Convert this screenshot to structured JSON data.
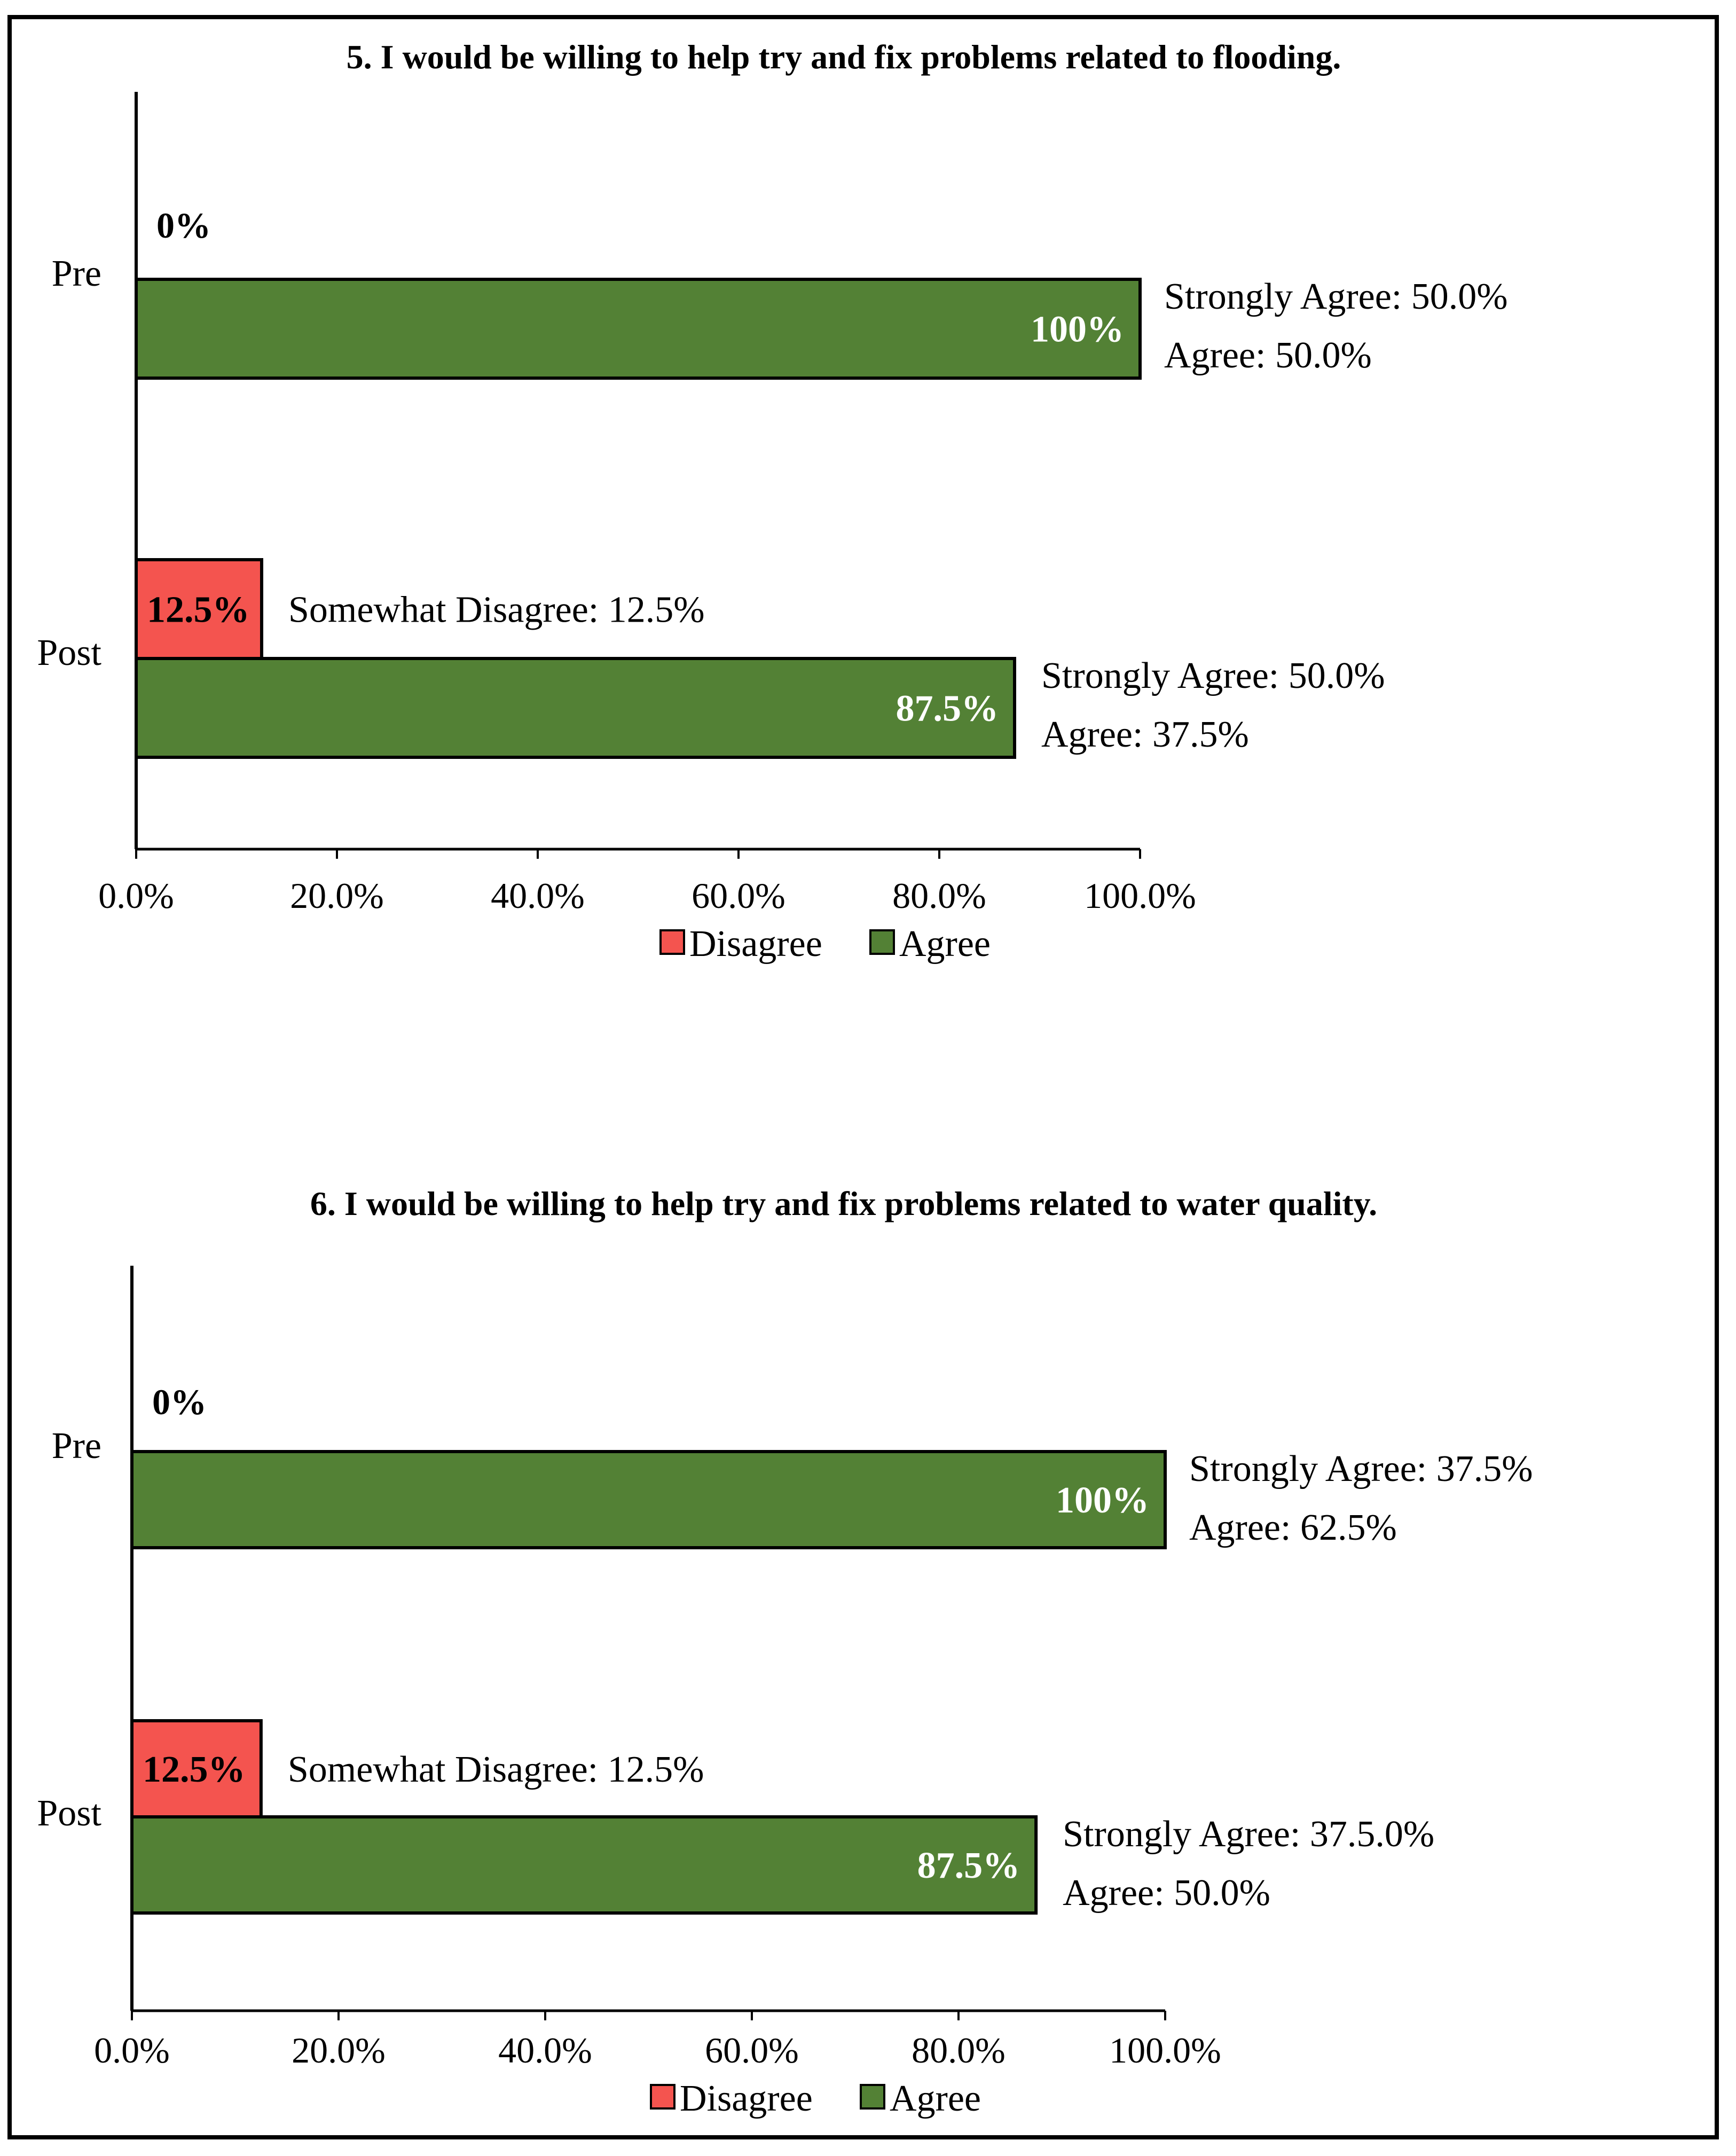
{
  "chart_data": [
    {
      "type": "bar",
      "orientation": "horizontal",
      "title": "5. I would be willing to help try and fix problems related to flooding.",
      "categories": [
        "Pre",
        "Post"
      ],
      "series": [
        {
          "name": "Disagree",
          "values": [
            0,
            12.5
          ],
          "labels": [
            "0%",
            "12.5%"
          ],
          "color": "#f4544f"
        },
        {
          "name": "Agree",
          "values": [
            100,
            87.5
          ],
          "labels": [
            "100%",
            "87.5%"
          ],
          "color": "#538135"
        }
      ],
      "annotations": {
        "pre_agree": [
          "Strongly Agree:  50.0%",
          "Agree:  50.0%"
        ],
        "post_disagree": [
          "Somewhat Disagree:  12.5%"
        ],
        "post_agree": [
          "Strongly Agree:  50.0%",
          "Agree:  37.5%"
        ]
      },
      "xlim": [
        0,
        100
      ],
      "xticks": [
        "0.0%",
        "20.0%",
        "40.0%",
        "60.0%",
        "80.0%",
        "100.0%"
      ],
      "legend": [
        "Disagree",
        "Agree"
      ],
      "legend_position": "bottom"
    },
    {
      "type": "bar",
      "orientation": "horizontal",
      "title": "6. I would be willing to help try and fix problems related to water quality.",
      "categories": [
        "Pre",
        "Post"
      ],
      "series": [
        {
          "name": "Disagree",
          "values": [
            0,
            12.5
          ],
          "labels": [
            "0%",
            "12.5%"
          ],
          "color": "#f4544f"
        },
        {
          "name": "Agree",
          "values": [
            100,
            87.5
          ],
          "labels": [
            "100%",
            "87.5%"
          ],
          "color": "#538135"
        }
      ],
      "annotations": {
        "pre_agree": [
          "Strongly Agree:  37.5%",
          "Agree:  62.5%"
        ],
        "post_disagree": [
          "Somewhat Disagree:  12.5%"
        ],
        "post_agree": [
          "Strongly Agree:  37.5.0%",
          "Agree:  50.0%"
        ]
      },
      "xlim": [
        0,
        100
      ],
      "xticks": [
        "0.0%",
        "20.0%",
        "40.0%",
        "60.0%",
        "80.0%",
        "100.0%"
      ],
      "legend": [
        "Disagree",
        "Agree"
      ],
      "legend_position": "bottom"
    }
  ]
}
